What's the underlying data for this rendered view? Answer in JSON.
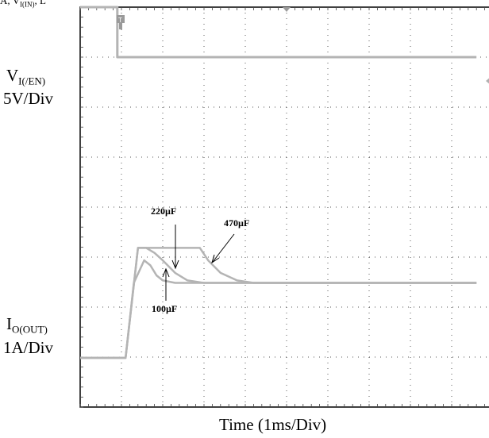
{
  "header_fragment": {
    "parts": [
      "A",
      ", V",
      "I(IN)",
      "",
      ", ",
      "L"
    ]
  },
  "channel1": {
    "label_main": "V",
    "label_sub": "I(/EN)",
    "scale": "5V/Div"
  },
  "channel2": {
    "label_main": "I",
    "label_sub": "O(OUT)",
    "scale": "1A/Div"
  },
  "annotations": {
    "c220": "220µF",
    "c470": "470µF",
    "c100": "100µF"
  },
  "xlabel": "Time (1ms/Div)",
  "colors": {
    "grid": "#555555",
    "trace": "#b4b4b4",
    "frame": "#000000"
  },
  "chart_data": {
    "type": "line",
    "x_unit": "ms",
    "x_divisions": 10,
    "y_divisions": 8,
    "xlim": [
      0,
      9.6
    ],
    "grid": true,
    "series": [
      {
        "name": "V I(/EN)",
        "axis": "5V/Div",
        "x": [
          0,
          0.9,
          0.9,
          9.6
        ],
        "y": [
          15,
          15,
          10,
          10
        ]
      },
      {
        "name": "220µF",
        "axis": "1A/Div",
        "x": [
          0,
          1.1,
          1.4,
          1.6,
          1.8,
          2.0,
          2.3,
          2.6,
          3.0,
          9.6
        ],
        "y": [
          0,
          0,
          2.2,
          2.2,
          2.1,
          1.95,
          1.7,
          1.55,
          1.5,
          1.5
        ]
      },
      {
        "name": "470µF",
        "axis": "1A/Div",
        "x": [
          0,
          1.1,
          1.4,
          2.9,
          3.1,
          3.4,
          3.8,
          4.2,
          9.6
        ],
        "y": [
          0,
          0,
          2.2,
          2.2,
          1.95,
          1.7,
          1.55,
          1.5,
          1.5
        ]
      },
      {
        "name": "100µF",
        "axis": "1A/Div",
        "x": [
          0,
          1.1,
          1.3,
          1.55,
          1.7,
          1.85,
          2.0,
          2.3,
          9.6
        ],
        "y": [
          0,
          0,
          1.5,
          1.95,
          1.85,
          1.65,
          1.55,
          1.5,
          1.5
        ]
      }
    ]
  }
}
